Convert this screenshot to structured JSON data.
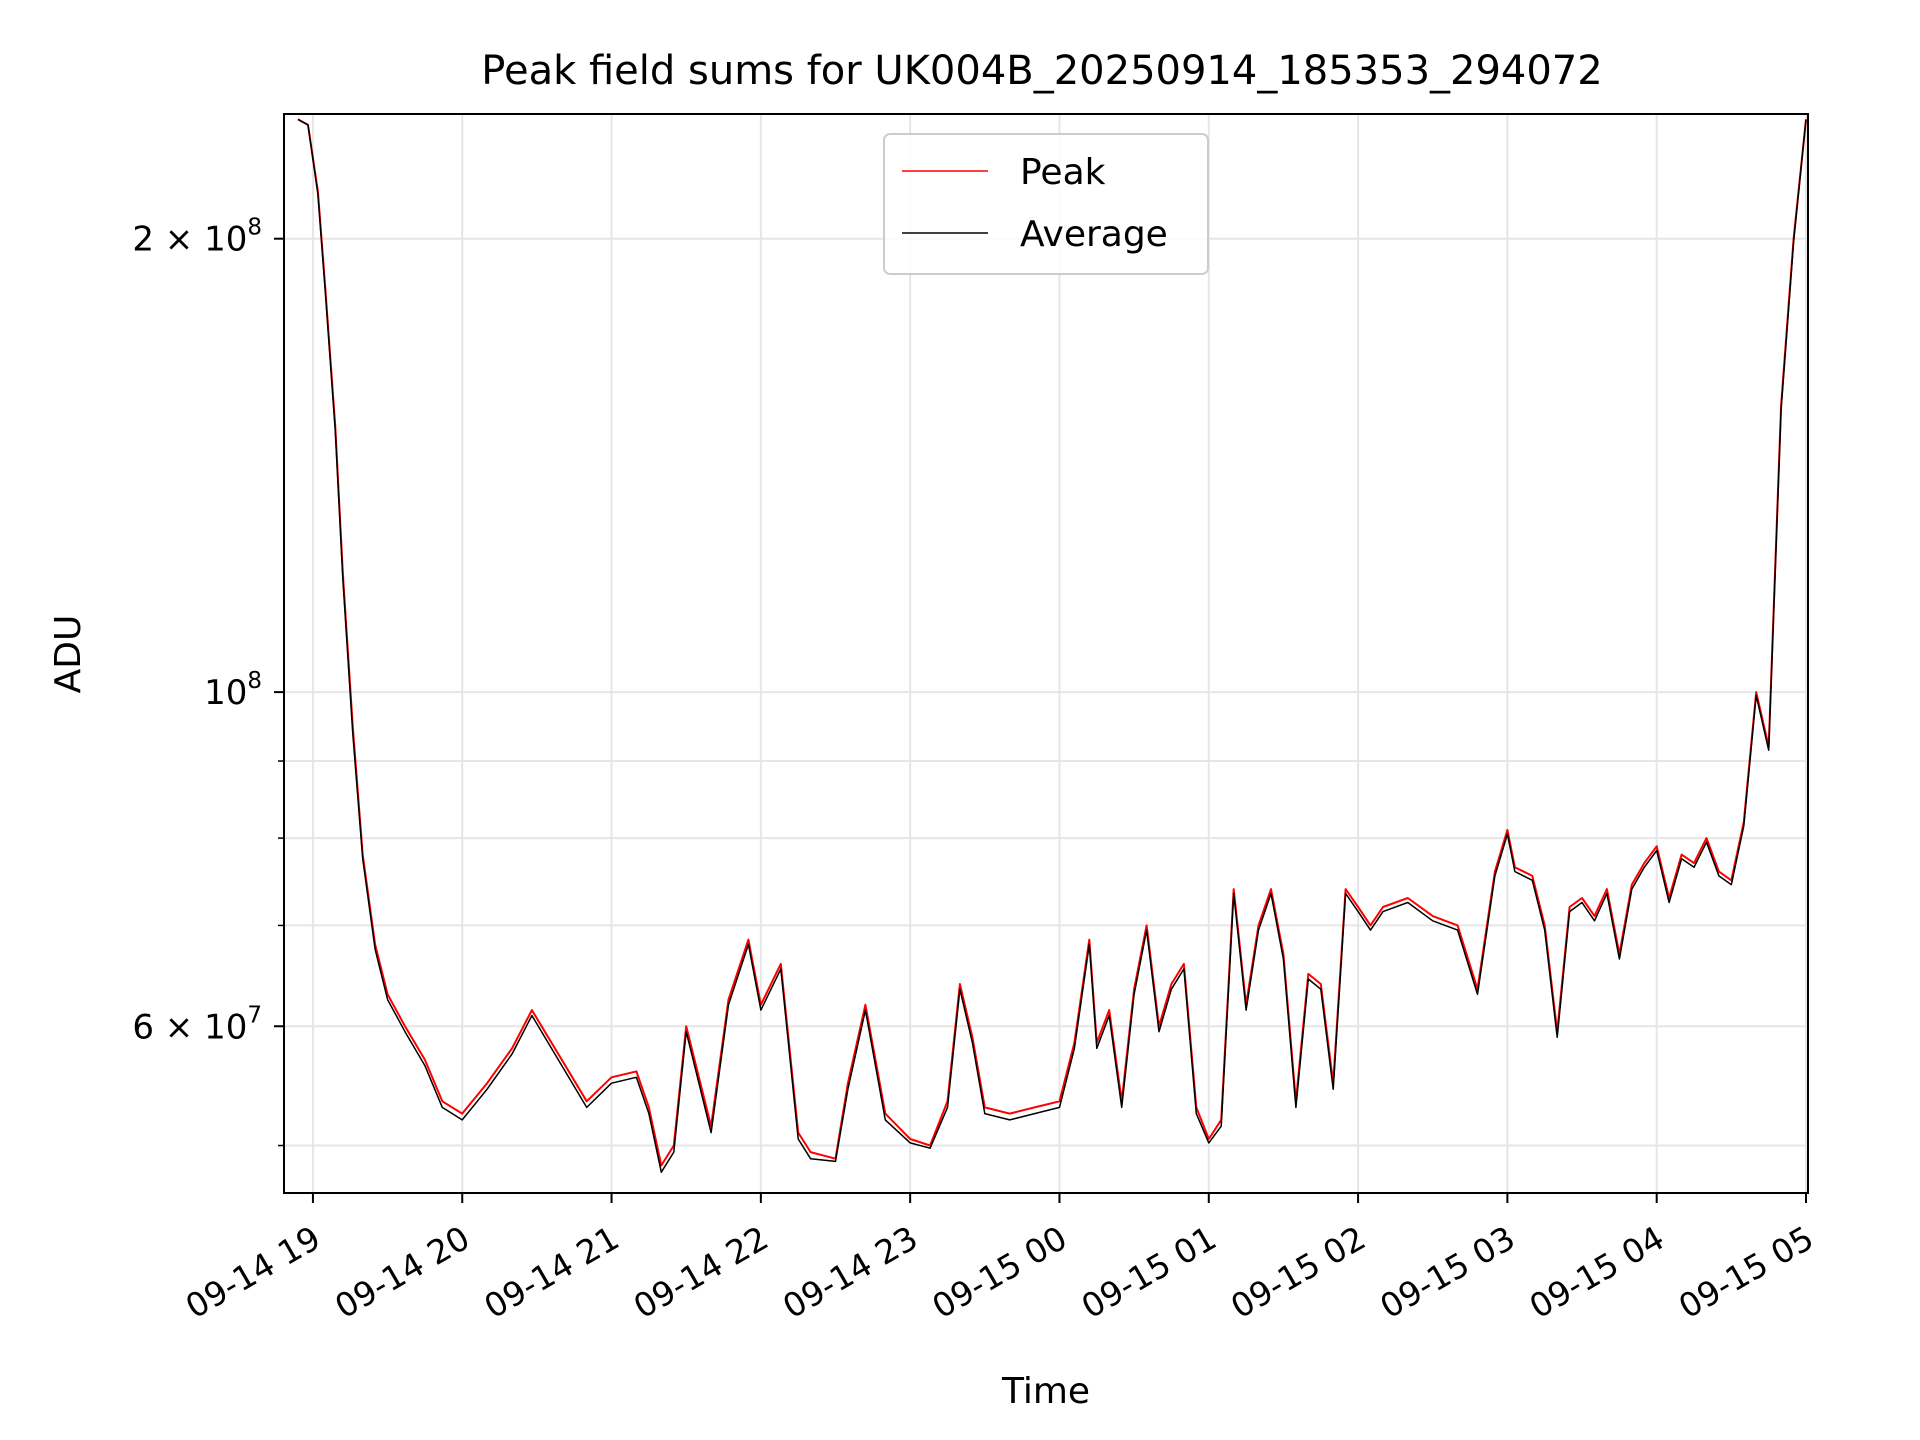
{
  "chart_data": {
    "type": "line",
    "title": "Peak field sums for UK004B_20250914_185353_294072",
    "xlabel": "Time",
    "ylabel": "ADU",
    "yscale": "log",
    "grid": true,
    "legend_position": "top-center",
    "x_tick_labels": [
      "09-14 19",
      "09-14 20",
      "09-14 21",
      "09-14 22",
      "09-14 23",
      "09-15 00",
      "09-15 01",
      "09-15 02",
      "09-15 03",
      "09-15 04",
      "09-15 05"
    ],
    "y_tick_labels": [
      {
        "value": 200000000,
        "base": "2 × 10",
        "exp": "8"
      },
      {
        "value": 100000000,
        "base": "10",
        "exp": "8"
      },
      {
        "value": 60000000,
        "base": "6 × 10",
        "exp": "7"
      }
    ],
    "y_minor_ticks": [
      50000000,
      70000000,
      80000000,
      90000000
    ],
    "xlim": [
      "2025-09-14 18:54",
      "2025-09-15 05:00"
    ],
    "ylim": [
      46500000,
      242000000
    ],
    "series": [
      {
        "name": "Peak",
        "color": "#ff0000",
        "x": [
          "2025-09-14 18:54",
          "2025-09-14 18:58",
          "2025-09-14 19:02",
          "2025-09-14 19:05",
          "2025-09-14 19:09",
          "2025-09-14 19:12",
          "2025-09-14 19:16",
          "2025-09-14 19:20",
          "2025-09-14 19:25",
          "2025-09-14 19:30",
          "2025-09-14 19:37",
          "2025-09-14 19:45",
          "2025-09-14 19:52",
          "2025-09-14 20:00",
          "2025-09-14 20:10",
          "2025-09-14 20:20",
          "2025-09-14 20:28",
          "2025-09-14 20:40",
          "2025-09-14 20:50",
          "2025-09-14 21:00",
          "2025-09-14 21:10",
          "2025-09-14 21:15",
          "2025-09-14 21:20",
          "2025-09-14 21:25",
          "2025-09-14 21:30",
          "2025-09-14 21:40",
          "2025-09-14 21:47",
          "2025-09-14 21:55",
          "2025-09-14 22:00",
          "2025-09-14 22:08",
          "2025-09-14 22:15",
          "2025-09-14 22:20",
          "2025-09-14 22:30",
          "2025-09-14 22:35",
          "2025-09-14 22:42",
          "2025-09-14 22:50",
          "2025-09-14 23:00",
          "2025-09-14 23:08",
          "2025-09-14 23:15",
          "2025-09-14 23:20",
          "2025-09-14 23:25",
          "2025-09-14 23:30",
          "2025-09-14 23:40",
          "2025-09-14 23:50",
          "2025-09-15 00:00",
          "2025-09-15 00:06",
          "2025-09-15 00:12",
          "2025-09-15 00:15",
          "2025-09-15 00:20",
          "2025-09-15 00:25",
          "2025-09-15 00:30",
          "2025-09-15 00:35",
          "2025-09-15 00:40",
          "2025-09-15 00:45",
          "2025-09-15 00:50",
          "2025-09-15 00:55",
          "2025-09-15 01:00",
          "2025-09-15 01:05",
          "2025-09-15 01:10",
          "2025-09-15 01:15",
          "2025-09-15 01:20",
          "2025-09-15 01:25",
          "2025-09-15 01:30",
          "2025-09-15 01:35",
          "2025-09-15 01:40",
          "2025-09-15 01:45",
          "2025-09-15 01:50",
          "2025-09-15 01:55",
          "2025-09-15 02:00",
          "2025-09-15 02:05",
          "2025-09-15 02:10",
          "2025-09-15 02:20",
          "2025-09-15 02:30",
          "2025-09-15 02:40",
          "2025-09-15 02:48",
          "2025-09-15 02:55",
          "2025-09-15 03:00",
          "2025-09-15 03:03",
          "2025-09-15 03:10",
          "2025-09-15 03:15",
          "2025-09-15 03:20",
          "2025-09-15 03:25",
          "2025-09-15 03:30",
          "2025-09-15 03:35",
          "2025-09-15 03:40",
          "2025-09-15 03:45",
          "2025-09-15 03:50",
          "2025-09-15 03:55",
          "2025-09-15 04:00",
          "2025-09-15 04:05",
          "2025-09-15 04:10",
          "2025-09-15 04:15",
          "2025-09-15 04:20",
          "2025-09-15 04:25",
          "2025-09-15 04:30",
          "2025-09-15 04:35",
          "2025-09-15 04:40",
          "2025-09-15 04:45",
          "2025-09-15 04:50",
          "2025-09-15 04:55",
          "2025-09-15 05:00"
        ],
        "values": [
          240000000,
          238000000,
          215000000,
          185000000,
          150000000,
          120000000,
          95000000,
          78000000,
          68000000,
          63000000,
          60000000,
          57000000,
          53500000,
          52500000,
          55000000,
          58000000,
          61500000,
          57000000,
          53500000,
          55500000,
          56000000,
          53000000,
          48500000,
          50000000,
          60000000,
          51500000,
          62500000,
          68500000,
          62000000,
          66000000,
          51000000,
          49500000,
          49000000,
          55000000,
          62000000,
          52500000,
          50500000,
          50000000,
          53500000,
          64000000,
          59000000,
          53000000,
          52500000,
          53000000,
          53500000,
          58500000,
          68500000,
          58500000,
          61500000,
          53500000,
          63500000,
          70000000,
          60000000,
          64000000,
          66000000,
          53000000,
          50500000,
          52000000,
          74000000,
          62000000,
          70000000,
          74000000,
          67000000,
          53500000,
          65000000,
          64000000,
          55000000,
          74000000,
          72000000,
          70000000,
          72000000,
          73000000,
          71000000,
          70000000,
          63500000,
          76000000,
          81000000,
          76500000,
          75500000,
          70000000,
          59500000,
          72000000,
          73000000,
          71000000,
          74000000,
          67000000,
          74500000,
          77000000,
          79000000,
          73000000,
          78000000,
          77000000,
          80000000,
          76000000,
          75000000,
          82000000,
          100000000,
          92000000,
          155000000,
          200000000,
          240000000
        ]
      },
      {
        "name": "Average",
        "color": "#000000",
        "x": [
          "2025-09-14 18:54",
          "2025-09-14 18:58",
          "2025-09-14 19:02",
          "2025-09-14 19:05",
          "2025-09-14 19:09",
          "2025-09-14 19:12",
          "2025-09-14 19:16",
          "2025-09-14 19:20",
          "2025-09-14 19:25",
          "2025-09-14 19:30",
          "2025-09-14 19:37",
          "2025-09-14 19:45",
          "2025-09-14 19:52",
          "2025-09-14 20:00",
          "2025-09-14 20:10",
          "2025-09-14 20:20",
          "2025-09-14 20:28",
          "2025-09-14 20:40",
          "2025-09-14 20:50",
          "2025-09-14 21:00",
          "2025-09-14 21:10",
          "2025-09-14 21:15",
          "2025-09-14 21:20",
          "2025-09-14 21:25",
          "2025-09-14 21:30",
          "2025-09-14 21:40",
          "2025-09-14 21:47",
          "2025-09-14 21:55",
          "2025-09-14 22:00",
          "2025-09-14 22:08",
          "2025-09-14 22:15",
          "2025-09-14 22:20",
          "2025-09-14 22:30",
          "2025-09-14 22:35",
          "2025-09-14 22:42",
          "2025-09-14 22:50",
          "2025-09-14 23:00",
          "2025-09-14 23:08",
          "2025-09-14 23:15",
          "2025-09-14 23:20",
          "2025-09-14 23:25",
          "2025-09-14 23:30",
          "2025-09-14 23:40",
          "2025-09-14 23:50",
          "2025-09-15 00:00",
          "2025-09-15 00:06",
          "2025-09-15 00:12",
          "2025-09-15 00:15",
          "2025-09-15 00:20",
          "2025-09-15 00:25",
          "2025-09-15 00:30",
          "2025-09-15 00:35",
          "2025-09-15 00:40",
          "2025-09-15 00:45",
          "2025-09-15 00:50",
          "2025-09-15 00:55",
          "2025-09-15 01:00",
          "2025-09-15 01:05",
          "2025-09-15 01:10",
          "2025-09-15 01:15",
          "2025-09-15 01:20",
          "2025-09-15 01:25",
          "2025-09-15 01:30",
          "2025-09-15 01:35",
          "2025-09-15 01:40",
          "2025-09-15 01:45",
          "2025-09-15 01:50",
          "2025-09-15 01:55",
          "2025-09-15 02:00",
          "2025-09-15 02:05",
          "2025-09-15 02:10",
          "2025-09-15 02:20",
          "2025-09-15 02:30",
          "2025-09-15 02:40",
          "2025-09-15 02:48",
          "2025-09-15 02:55",
          "2025-09-15 03:00",
          "2025-09-15 03:03",
          "2025-09-15 03:10",
          "2025-09-15 03:15",
          "2025-09-15 03:20",
          "2025-09-15 03:25",
          "2025-09-15 03:30",
          "2025-09-15 03:35",
          "2025-09-15 03:40",
          "2025-09-15 03:45",
          "2025-09-15 03:50",
          "2025-09-15 03:55",
          "2025-09-15 04:00",
          "2025-09-15 04:05",
          "2025-09-15 04:10",
          "2025-09-15 04:15",
          "2025-09-15 04:20",
          "2025-09-15 04:25",
          "2025-09-15 04:30",
          "2025-09-15 04:35",
          "2025-09-15 04:40",
          "2025-09-15 04:45",
          "2025-09-15 04:50",
          "2025-09-15 04:55",
          "2025-09-15 05:00"
        ],
        "values": [
          240000000,
          238000000,
          214000000,
          184000000,
          149000000,
          119000000,
          94000000,
          77500000,
          67500000,
          62500000,
          59500000,
          56500000,
          53000000,
          52000000,
          54500000,
          57500000,
          61000000,
          56500000,
          53000000,
          55000000,
          55500000,
          52500000,
          48000000,
          49500000,
          59500000,
          51000000,
          62000000,
          68000000,
          61500000,
          65500000,
          50500000,
          49000000,
          48800000,
          54500000,
          61500000,
          52000000,
          50200000,
          49800000,
          53000000,
          63500000,
          58500000,
          52500000,
          52000000,
          52500000,
          53000000,
          58000000,
          68000000,
          58000000,
          61000000,
          53000000,
          63000000,
          69500000,
          59500000,
          63500000,
          65500000,
          52500000,
          50200000,
          51500000,
          73500000,
          61500000,
          69500000,
          73500000,
          66500000,
          53000000,
          64500000,
          63500000,
          54500000,
          73500000,
          71500000,
          69500000,
          71500000,
          72500000,
          70500000,
          69500000,
          63000000,
          75500000,
          80500000,
          76000000,
          75000000,
          69500000,
          59000000,
          71500000,
          72500000,
          70500000,
          73500000,
          66500000,
          74000000,
          76500000,
          78500000,
          72500000,
          77500000,
          76500000,
          79500000,
          75500000,
          74500000,
          81500000,
          99500000,
          91500000,
          154000000,
          199000000,
          240000000
        ]
      }
    ]
  }
}
